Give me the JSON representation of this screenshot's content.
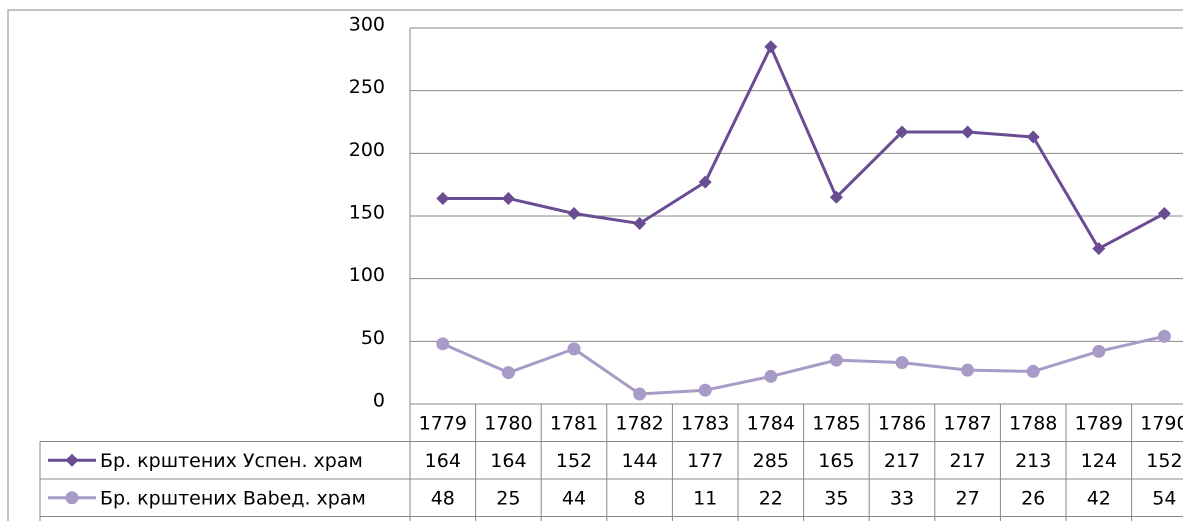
{
  "chart_data": {
    "type": "line",
    "categories": [
      "1779",
      "1780",
      "1781",
      "1782",
      "1783",
      "1784",
      "1785",
      "1786",
      "1787",
      "1788",
      "1789",
      "1790"
    ],
    "series": [
      {
        "name": "Бр. крштених Успен. храм",
        "color": "#6a4c93",
        "marker": "diamond",
        "values": [
          164,
          164,
          152,
          144,
          177,
          285,
          165,
          217,
          217,
          213,
          124,
          152
        ]
      },
      {
        "name": "Бр. крштених Babeд. храм",
        "color": "#a89bc8",
        "marker": "circle",
        "values": [
          48,
          25,
          44,
          8,
          11,
          22,
          35,
          33,
          27,
          26,
          42,
          54
        ]
      }
    ],
    "ylim": [
      0,
      300
    ],
    "yticks": [
      0,
      50,
      100,
      150,
      200,
      250,
      300
    ],
    "grid": true,
    "data_table": true
  }
}
